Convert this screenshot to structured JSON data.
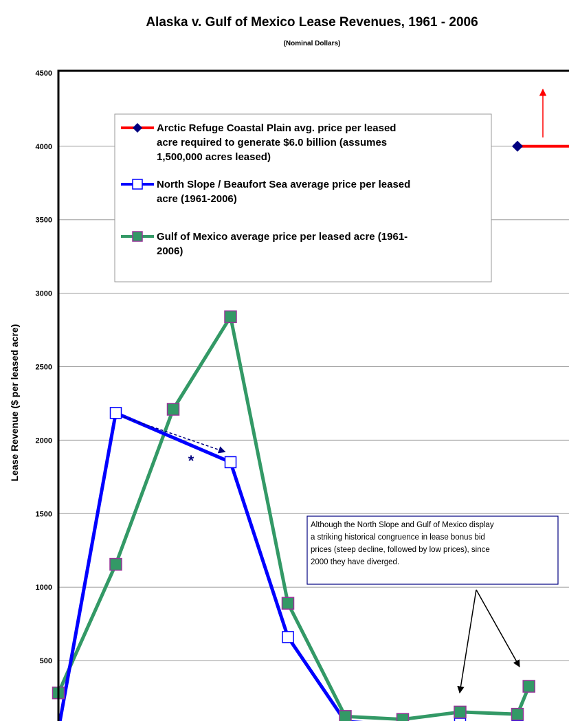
{
  "chart_data": {
    "type": "line",
    "title": "Alaska v. Gulf of Mexico Lease Revenues, 1961 - 2006",
    "subtitle": "(Nominal Dollars)",
    "xlabel": "",
    "ylabel": "Lease Revenue ($ per leased acre)",
    "ylim": [
      0,
      4500
    ],
    "yticks": [
      "500",
      "1000",
      "1500",
      "2000",
      "2500",
      "3000",
      "3500",
      "4000",
      "4500"
    ],
    "ytick_values": [
      500,
      1000,
      1500,
      2000,
      2500,
      3000,
      3500,
      4000,
      4500
    ],
    "grid": true,
    "legend_position": "top",
    "series": [
      {
        "name": "Arctic Refuge Coastal Plain avg. price per leased acre required to generate $6.0 billion (assumes 1,500,000 acres leased)",
        "legend_lines": [
          "Arctic Refuge Coastal Plain avg. price per leased",
          "acre required to generate $6.0 billion (assumes",
          "1,500,000 acres leased)"
        ],
        "color": "#ff0000",
        "marker": "diamond",
        "marker_color": "#000080",
        "points": [
          [
            8,
            4000
          ]
        ],
        "line_to_x": 9
      },
      {
        "name": "North Slope / Beaufort Sea average price per leased acre (1961-2006)",
        "legend_lines": [
          "North Slope / Beaufort Sea average price per leased",
          "acre (1961-2006)"
        ],
        "color": "#0000ff",
        "marker": "open-square",
        "marker_color": "#0000ff",
        "points": [
          [
            0,
            30
          ],
          [
            1,
            2185
          ],
          [
            3,
            1850
          ],
          [
            4,
            660
          ],
          [
            5,
            85
          ],
          [
            6,
            60
          ],
          [
            7,
            70
          ],
          [
            8,
            55
          ]
        ]
      },
      {
        "name": "Gulf of Mexico average price per leased acre (1961-2006)",
        "legend_lines": [
          "Gulf of Mexico average price per leased acre (1961-",
          "2006)"
        ],
        "color": "#339966",
        "marker": "filled-square",
        "marker_color": "#993399",
        "points": [
          [
            0,
            280
          ],
          [
            1,
            1155
          ],
          [
            2,
            2210
          ],
          [
            3,
            2840
          ],
          [
            4,
            890
          ],
          [
            5,
            120
          ],
          [
            6,
            100
          ],
          [
            7,
            150
          ],
          [
            8,
            135
          ],
          [
            8.2,
            325
          ]
        ]
      }
    ],
    "annotations": {
      "star": "*",
      "note_lines": [
        "Although the North Slope and Gulf of Mexico display",
        "a striking historical congruence in lease bonus bid",
        "prices (steep decline, followed by low prices), since",
        "2000 they have diverged."
      ]
    }
  }
}
